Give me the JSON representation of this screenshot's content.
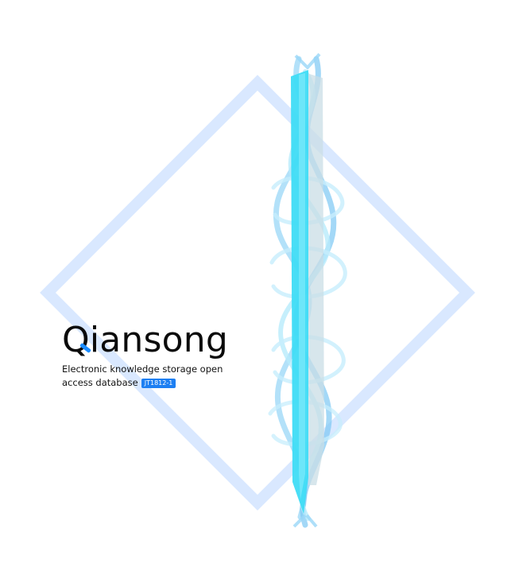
{
  "brand": {
    "name_first_letter": "Q",
    "name_rest": "iansong",
    "tagline_line1": "Electronic knowledge storage open",
    "tagline_line2": "access database",
    "badge": "JT1812-1"
  },
  "colors": {
    "diamond": "#d9e8ff",
    "pillar": "#3fdcf5",
    "pillar_shadow": "#c9dde6",
    "ribbon": "#6fd4f5",
    "accent": "#1d7ff2",
    "text": "#0b0b0b"
  }
}
